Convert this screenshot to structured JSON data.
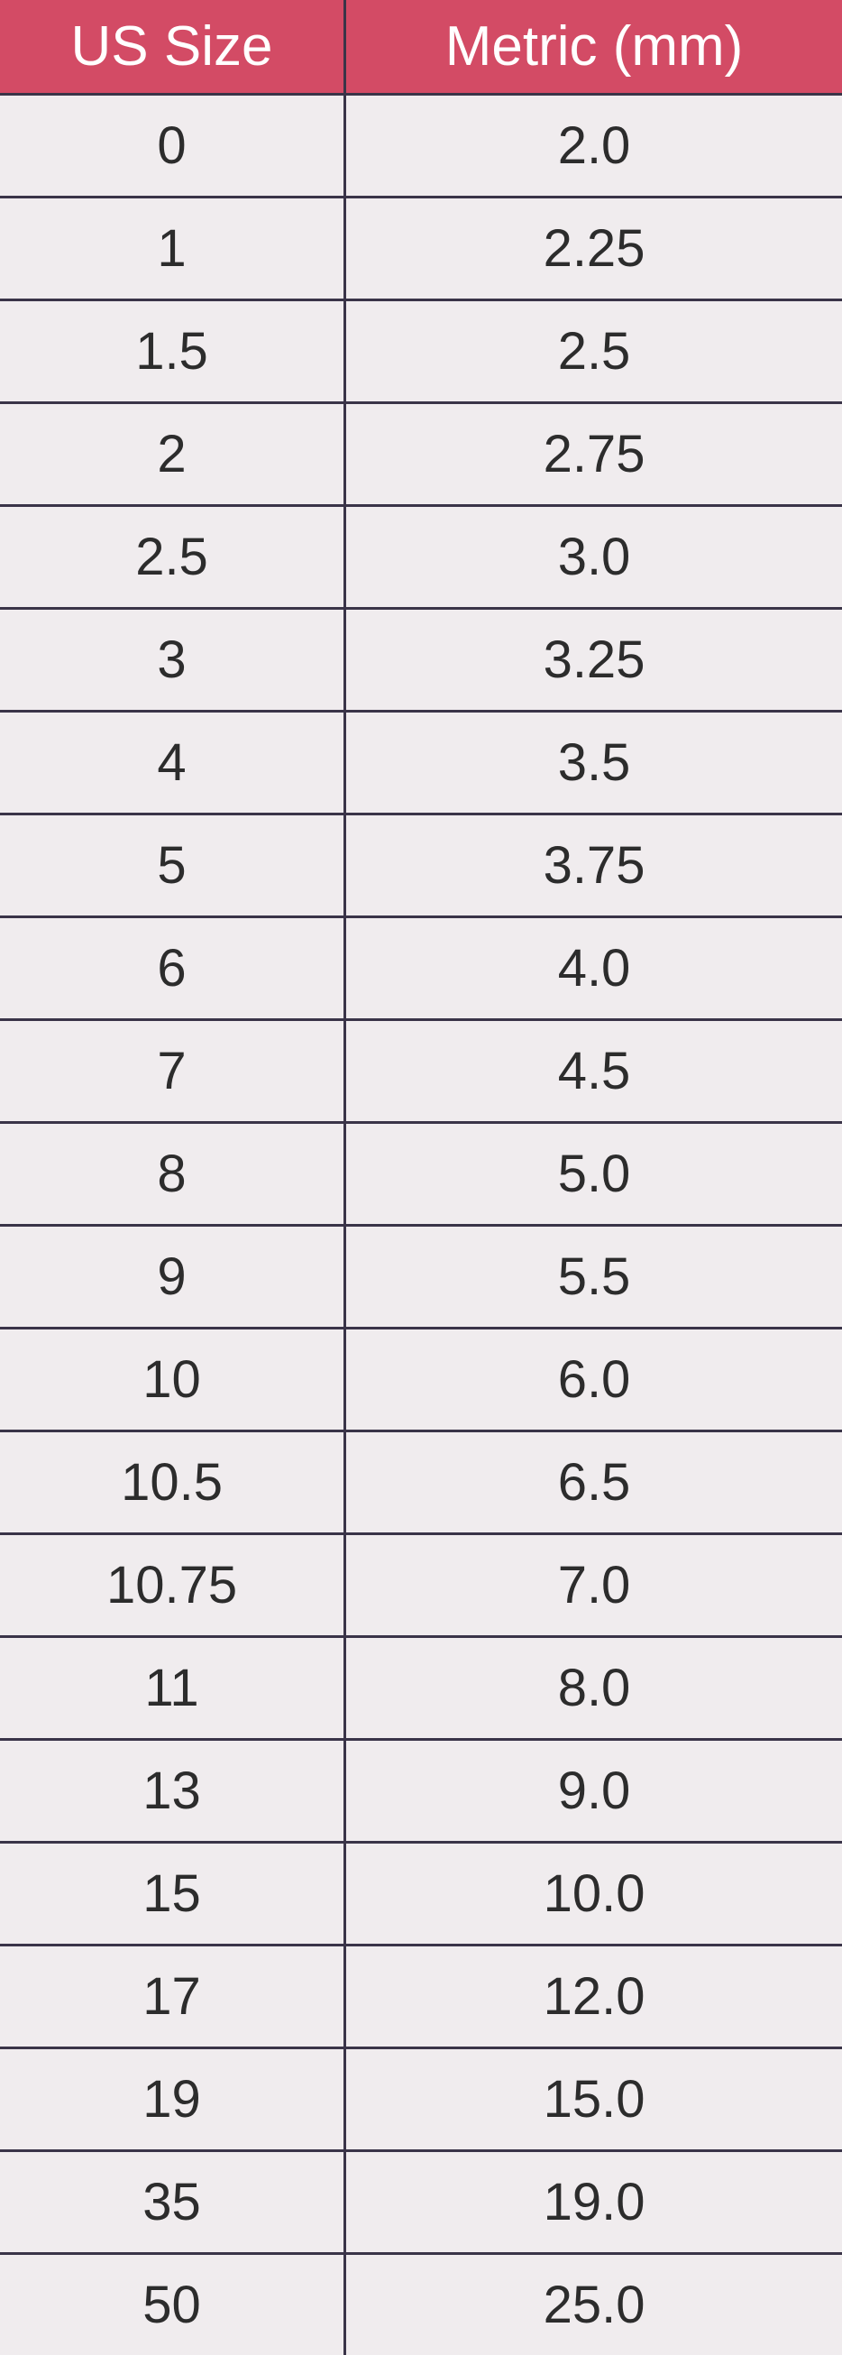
{
  "table": {
    "type": "table",
    "columns": [
      "US Size",
      "Metric (mm)"
    ],
    "rows": [
      [
        "0",
        "2.0"
      ],
      [
        "1",
        "2.25"
      ],
      [
        "1.5",
        "2.5"
      ],
      [
        "2",
        "2.75"
      ],
      [
        "2.5",
        "3.0"
      ],
      [
        "3",
        "3.25"
      ],
      [
        "4",
        "3.5"
      ],
      [
        "5",
        "3.75"
      ],
      [
        "6",
        "4.0"
      ],
      [
        "7",
        "4.5"
      ],
      [
        "8",
        "5.0"
      ],
      [
        "9",
        "5.5"
      ],
      [
        "10",
        "6.0"
      ],
      [
        "10.5",
        "6.5"
      ],
      [
        "10.75",
        "7.0"
      ],
      [
        "11",
        "8.0"
      ],
      [
        "13",
        "9.0"
      ],
      [
        "15",
        "10.0"
      ],
      [
        "17",
        "12.0"
      ],
      [
        "19",
        "15.0"
      ],
      [
        "35",
        "19.0"
      ],
      [
        "50",
        "25.0"
      ]
    ],
    "header_bg": "#d34b65",
    "header_text_color": "#ffffff",
    "cell_bg": "#f0ecee",
    "cell_text_color": "#2c2c2c",
    "border_color": "#3a3448",
    "header_fontsize": 62,
    "cell_fontsize": 58,
    "column_widths": [
      "50%",
      "50%"
    ],
    "text_align": "center"
  }
}
